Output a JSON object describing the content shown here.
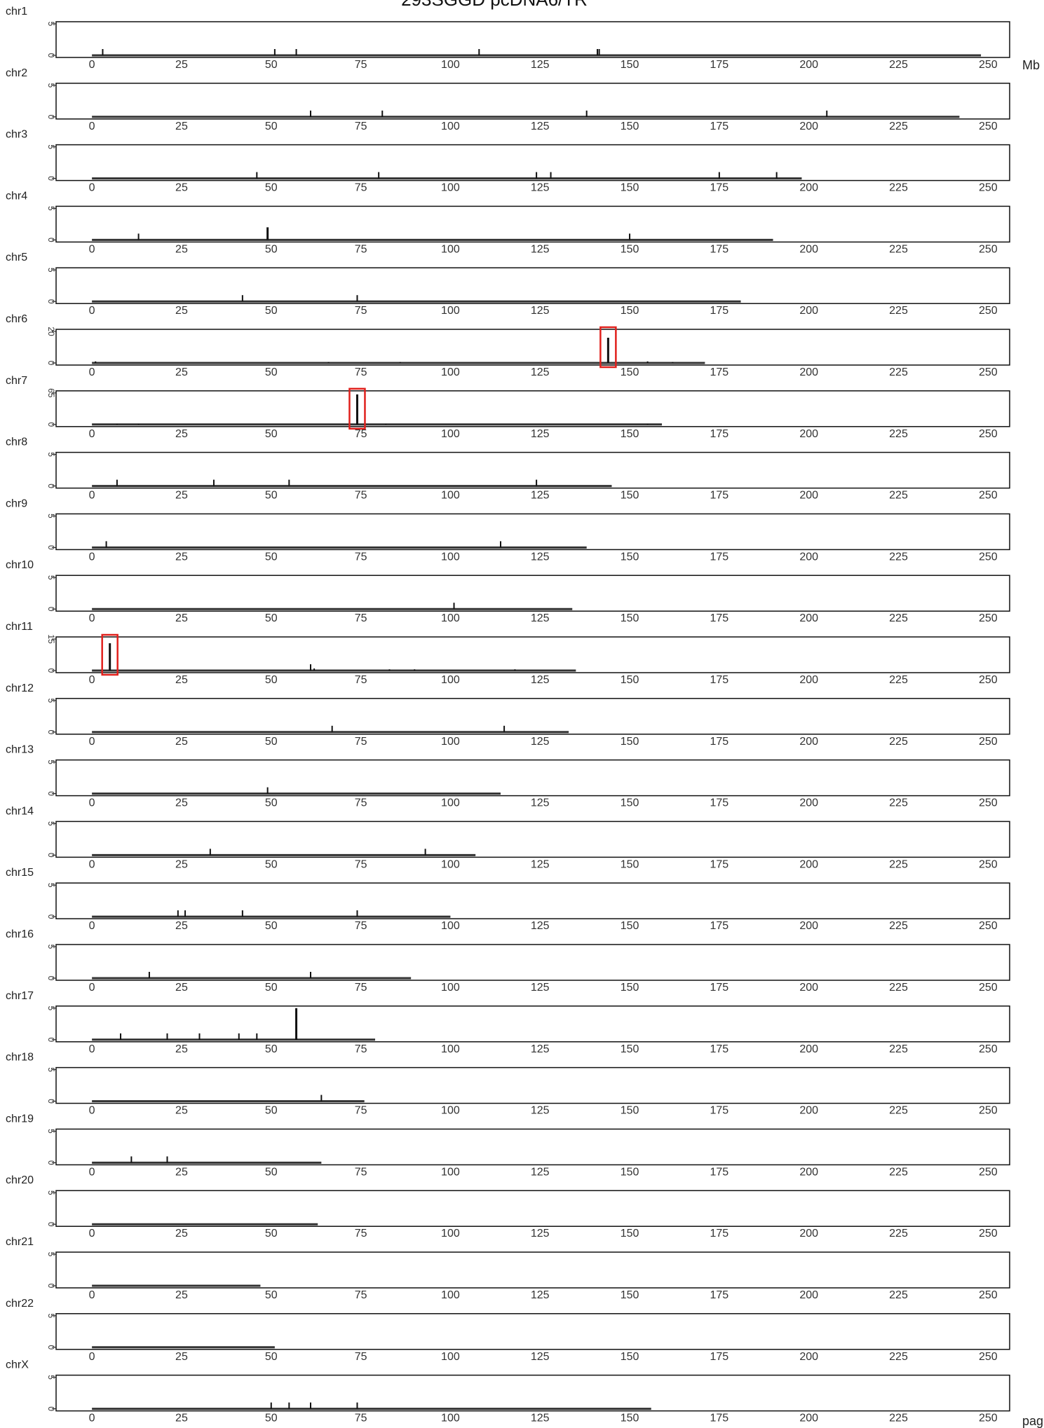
{
  "chart_data": {
    "type": "bar",
    "title": "293SGGD pcDNA6/TR",
    "x_unit_label": "Mb",
    "footer_label": "pag",
    "x_ticks": [
      0,
      25,
      50,
      75,
      100,
      125,
      150,
      175,
      200,
      225,
      250
    ],
    "xlim": [
      -10,
      256
    ],
    "highlight_color": "#e0201c",
    "bar_color": "#111111",
    "grid": false,
    "chromosomes": [
      {
        "name": "chr1",
        "length": 248,
        "ymax": 5,
        "y_ticks": [
          0,
          5
        ],
        "peaks": [
          [
            3,
            1
          ],
          [
            51,
            1
          ],
          [
            57,
            1
          ],
          [
            108,
            1
          ],
          [
            141,
            1
          ],
          [
            141.5,
            1
          ]
        ]
      },
      {
        "name": "chr2",
        "length": 242,
        "ymax": 5,
        "y_ticks": [
          0,
          5
        ],
        "peaks": [
          [
            61,
            1
          ],
          [
            81,
            1
          ],
          [
            138,
            1
          ],
          [
            205,
            1
          ]
        ]
      },
      {
        "name": "chr3",
        "length": 198,
        "ymax": 5,
        "y_ticks": [
          0,
          5
        ],
        "peaks": [
          [
            46,
            1
          ],
          [
            80,
            1
          ],
          [
            124,
            1
          ],
          [
            128,
            1
          ],
          [
            175,
            1
          ],
          [
            191,
            1
          ]
        ]
      },
      {
        "name": "chr4",
        "length": 190,
        "ymax": 5,
        "y_ticks": [
          0,
          5
        ],
        "peaks": [
          [
            13,
            1
          ],
          [
            49,
            2
          ],
          [
            150,
            1
          ]
        ]
      },
      {
        "name": "chr5",
        "length": 181,
        "ymax": 5,
        "y_ticks": [
          0,
          5
        ],
        "peaks": [
          [
            42,
            1
          ],
          [
            74,
            1
          ]
        ]
      },
      {
        "name": "chr6",
        "length": 171,
        "ymax": 20,
        "y_ticks": [
          0,
          20
        ],
        "peaks": [
          [
            1,
            1
          ],
          [
            66,
            0.6
          ],
          [
            86,
            0.6
          ],
          [
            144,
            16
          ],
          [
            155,
            1
          ],
          [
            162,
            0.6
          ]
        ],
        "highlights": [
          144
        ]
      },
      {
        "name": "chr7",
        "length": 159,
        "ymax": 65,
        "y_ticks": [
          0,
          65
        ],
        "peaks": [
          [
            7,
            1
          ],
          [
            13,
            1
          ],
          [
            74,
            62
          ],
          [
            82,
            1
          ],
          [
            155,
            1
          ]
        ],
        "highlights": [
          74
        ]
      },
      {
        "name": "chr8",
        "length": 145,
        "ymax": 5,
        "y_ticks": [
          0,
          5
        ],
        "peaks": [
          [
            7,
            1
          ],
          [
            34,
            1
          ],
          [
            55,
            1
          ],
          [
            124,
            1
          ]
        ]
      },
      {
        "name": "chr9",
        "length": 138,
        "ymax": 5,
        "y_ticks": [
          0,
          5
        ],
        "peaks": [
          [
            4,
            1
          ],
          [
            114,
            1
          ]
        ]
      },
      {
        "name": "chr10",
        "length": 134,
        "ymax": 5,
        "y_ticks": [
          0,
          5
        ],
        "peaks": [
          [
            101,
            1
          ]
        ]
      },
      {
        "name": "chr11",
        "length": 135,
        "ymax": 15,
        "y_ticks": [
          0,
          15
        ],
        "peaks": [
          [
            5,
            13
          ],
          [
            61,
            3
          ],
          [
            62,
            1
          ],
          [
            83,
            0.6
          ],
          [
            90,
            0.6
          ],
          [
            118,
            0.6
          ]
        ],
        "highlights": [
          5
        ]
      },
      {
        "name": "chr12",
        "length": 133,
        "ymax": 5,
        "y_ticks": [
          0,
          5
        ],
        "peaks": [
          [
            67,
            1
          ],
          [
            115,
            1
          ]
        ]
      },
      {
        "name": "chr13",
        "length": 114,
        "ymax": 5,
        "y_ticks": [
          0,
          5
        ],
        "peaks": [
          [
            49,
            1
          ]
        ]
      },
      {
        "name": "chr14",
        "length": 107,
        "ymax": 5,
        "y_ticks": [
          0,
          5
        ],
        "peaks": [
          [
            33,
            1
          ],
          [
            93,
            1
          ]
        ]
      },
      {
        "name": "chr15",
        "length": 100,
        "ymax": 5,
        "y_ticks": [
          0,
          5
        ],
        "peaks": [
          [
            24,
            1
          ],
          [
            26,
            1
          ],
          [
            42,
            1
          ],
          [
            74,
            1
          ]
        ]
      },
      {
        "name": "chr16",
        "length": 89,
        "ymax": 5,
        "y_ticks": [
          0,
          5
        ],
        "peaks": [
          [
            16,
            1
          ],
          [
            61,
            1
          ]
        ]
      },
      {
        "name": "chr17",
        "length": 79,
        "ymax": 5,
        "y_ticks": [
          0,
          5
        ],
        "peaks": [
          [
            8,
            1
          ],
          [
            21,
            1
          ],
          [
            30,
            1
          ],
          [
            41,
            1
          ],
          [
            46,
            1
          ],
          [
            57,
            5
          ]
        ]
      },
      {
        "name": "chr18",
        "length": 76,
        "ymax": 5,
        "y_ticks": [
          0,
          5
        ],
        "peaks": [
          [
            64,
            1
          ]
        ]
      },
      {
        "name": "chr19",
        "length": 64,
        "ymax": 5,
        "y_ticks": [
          0,
          5
        ],
        "peaks": [
          [
            11,
            1
          ],
          [
            21,
            1
          ]
        ]
      },
      {
        "name": "chr20",
        "length": 63,
        "ymax": 5,
        "y_ticks": [
          0,
          5
        ],
        "peaks": []
      },
      {
        "name": "chr21",
        "length": 47,
        "ymax": 5,
        "y_ticks": [
          0,
          5
        ],
        "peaks": []
      },
      {
        "name": "chr22",
        "length": 51,
        "ymax": 5,
        "y_ticks": [
          0,
          5
        ],
        "peaks": []
      },
      {
        "name": "chrX",
        "length": 156,
        "ymax": 5,
        "y_ticks": [
          0,
          5
        ],
        "peaks": [
          [
            50,
            1
          ],
          [
            55,
            1
          ],
          [
            61,
            1
          ],
          [
            74,
            1
          ]
        ]
      }
    ]
  }
}
